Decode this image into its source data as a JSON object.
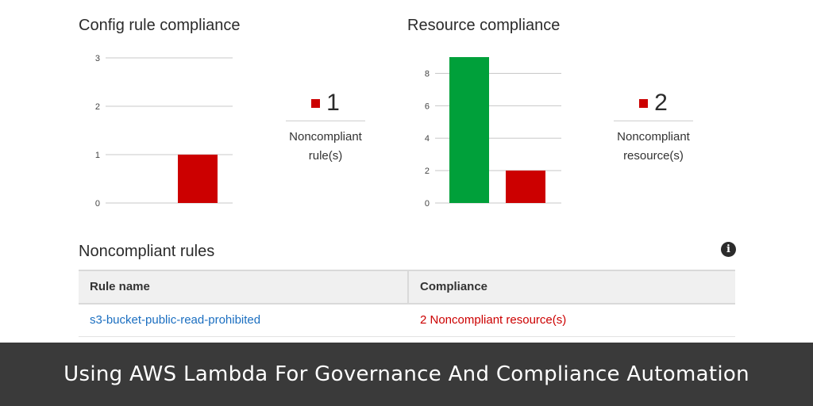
{
  "config_rule_compliance": {
    "title": "Config rule compliance",
    "summary": {
      "count": "1",
      "label_line1": "Noncompliant",
      "label_line2": "rule(s)"
    }
  },
  "resource_compliance": {
    "title": "Resource compliance",
    "summary": {
      "count": "2",
      "label_line1": "Noncompliant",
      "label_line2": "resource(s)"
    }
  },
  "colors": {
    "compliant": "#00a03a",
    "noncompliant": "#cc0000",
    "banner_bg": "#3a3a3a"
  },
  "chart_data": [
    {
      "type": "bar",
      "title": "Config rule compliance",
      "categories": [
        "",
        ""
      ],
      "values": [
        0,
        1
      ],
      "bar_colors": [
        "#00a03a",
        "#cc0000"
      ],
      "yticks": [
        "0",
        "1",
        "2",
        "3"
      ],
      "ylim": [
        0,
        3
      ],
      "grid": true
    },
    {
      "type": "bar",
      "title": "Resource compliance",
      "categories": [
        "",
        ""
      ],
      "values": [
        9,
        2
      ],
      "bar_colors": [
        "#00a03a",
        "#cc0000"
      ],
      "yticks": [
        "0",
        "2",
        "4",
        "6",
        "8"
      ],
      "ylim": [
        0,
        9
      ],
      "grid": true
    }
  ],
  "noncompliant_rules": {
    "title": "Noncompliant rules",
    "info_icon": "info-icon",
    "columns": [
      "Rule name",
      "Compliance"
    ],
    "rows": [
      {
        "rule_name": "s3-bucket-public-read-prohibited",
        "compliance": "2 Noncompliant resource(s)"
      }
    ]
  },
  "banner": {
    "text": "Using AWS Lambda For Governance And Compliance Automation"
  }
}
